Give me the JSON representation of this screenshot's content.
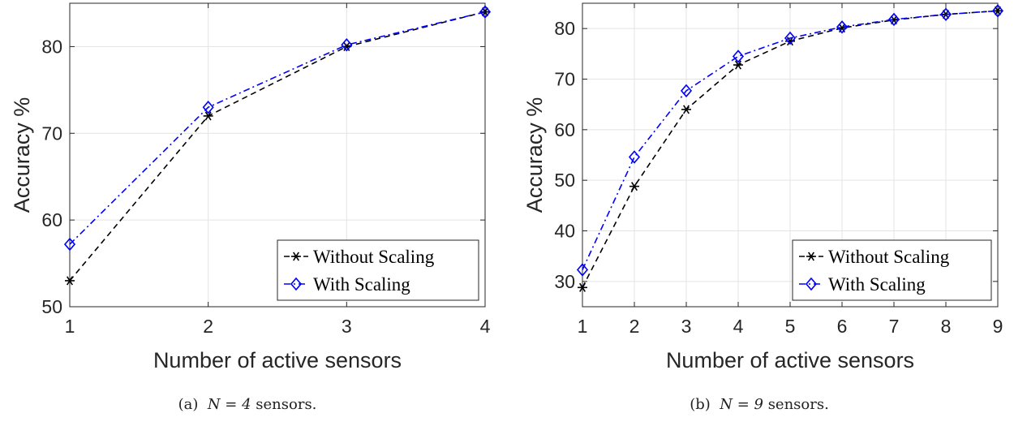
{
  "chart_data": [
    {
      "type": "line",
      "xlabel": "Number of active sensors",
      "ylabel": "Accuracy %",
      "x": [
        1,
        2,
        3,
        4
      ],
      "xlim": [
        1,
        4
      ],
      "ylim": [
        50,
        85
      ],
      "xticks": [
        1,
        2,
        3,
        4
      ],
      "yticks": [
        50,
        60,
        70,
        80
      ],
      "grid": true,
      "legend_position": "bottom-right",
      "series": [
        {
          "name": "Without Scaling",
          "values": [
            53,
            72,
            80,
            84
          ],
          "color": "#000000",
          "linestyle": "dashed",
          "marker": "asterisk"
        },
        {
          "name": "With Scaling",
          "values": [
            57.2,
            73,
            80.2,
            84
          ],
          "color": "#0000ff",
          "linestyle": "dash-dot",
          "marker": "diamond"
        }
      ],
      "caption": {
        "label": "(a)",
        "math": "N = 4",
        "text": "sensors."
      }
    },
    {
      "type": "line",
      "xlabel": "Number of active sensors",
      "ylabel": "Accuracy %",
      "x": [
        1,
        2,
        3,
        4,
        5,
        6,
        7,
        8,
        9
      ],
      "xlim": [
        1,
        9
      ],
      "ylim": [
        25,
        85
      ],
      "xticks": [
        1,
        2,
        3,
        4,
        5,
        6,
        7,
        8,
        9
      ],
      "yticks": [
        30,
        40,
        50,
        60,
        70,
        80
      ],
      "grid": true,
      "legend_position": "bottom-right",
      "series": [
        {
          "name": "Without Scaling",
          "values": [
            28.8,
            48.8,
            64,
            72.8,
            77.5,
            80.1,
            81.7,
            82.8,
            83.5
          ],
          "color": "#000000",
          "linestyle": "dashed",
          "marker": "asterisk"
        },
        {
          "name": "With Scaling",
          "values": [
            32.3,
            54.6,
            67.7,
            74.5,
            78.1,
            80.3,
            81.8,
            82.8,
            83.5
          ],
          "color": "#0000ff",
          "linestyle": "dash-dot",
          "marker": "diamond"
        }
      ],
      "caption": {
        "label": "(b)",
        "math": "N = 9",
        "text": "sensors."
      }
    }
  ]
}
